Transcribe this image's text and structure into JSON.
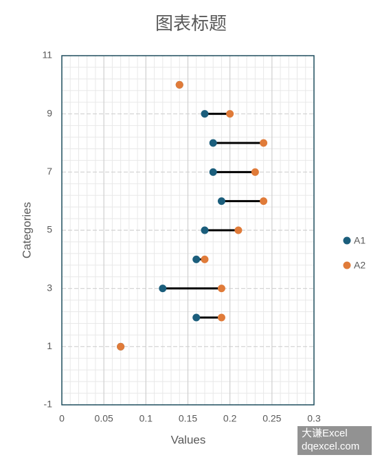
{
  "chart_data": {
    "type": "dumbbell",
    "title": "图表标题",
    "x_label": "Values",
    "y_label": "Categories",
    "y": [
      1,
      2,
      3,
      4,
      5,
      6,
      7,
      8,
      9,
      10
    ],
    "series": [
      {
        "name": "A1",
        "color": "#1b5e7c",
        "values": [
          0.07,
          0.16,
          0.12,
          0.16,
          0.17,
          0.19,
          0.18,
          0.18,
          0.17,
          0.14
        ]
      },
      {
        "name": "A2",
        "color": "#e07b39",
        "values": [
          0.07,
          0.19,
          0.19,
          0.17,
          0.21,
          0.24,
          0.23,
          0.24,
          0.2,
          0.14
        ]
      }
    ],
    "connector_color": "#000000",
    "xlim": [
      0,
      0.3
    ],
    "xticks": [
      0,
      0.05,
      0.1,
      0.15,
      0.2,
      0.25,
      0.3
    ],
    "ylim": [
      -1,
      11
    ],
    "yticks": [
      -1,
      1,
      3,
      5,
      7,
      9,
      11
    ],
    "grid": true,
    "legend": "right"
  },
  "watermark": {
    "line1": "大谦Excel",
    "line2": "dqexcel.com"
  }
}
